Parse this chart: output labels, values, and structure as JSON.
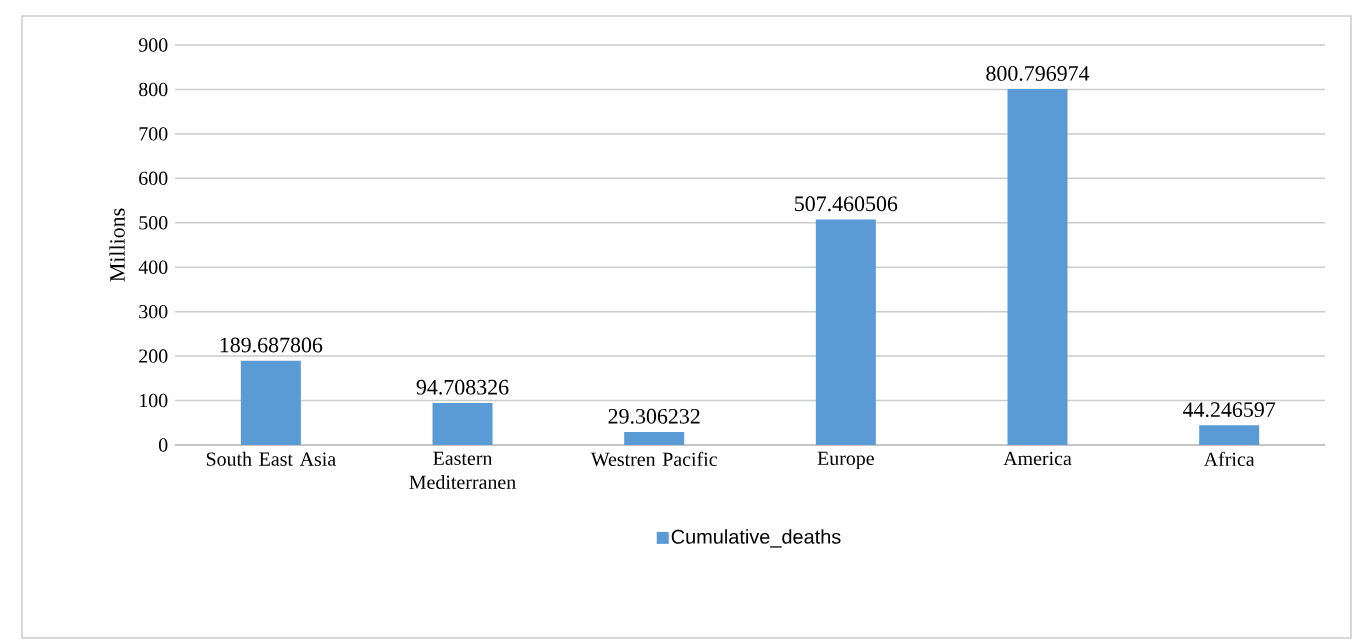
{
  "chart_data": {
    "type": "bar",
    "ylabel": "Millions",
    "categories": [
      "South East Asia",
      "Eastern Mediterranen",
      "Westren Pacific",
      "Europe",
      "America",
      "Africa"
    ],
    "series": [
      {
        "name": "Cumulative_deaths",
        "color": "#5b9bd5",
        "values": [
          189.687806,
          94.708326,
          29.306232,
          507.460506,
          800.796974,
          44.246597
        ]
      }
    ],
    "ylim": [
      0,
      900
    ],
    "yticks": [
      0,
      100,
      200,
      300,
      400,
      500,
      600,
      700,
      800,
      900
    ],
    "grid": "y",
    "legend": "bottom",
    "data_labels": true
  }
}
